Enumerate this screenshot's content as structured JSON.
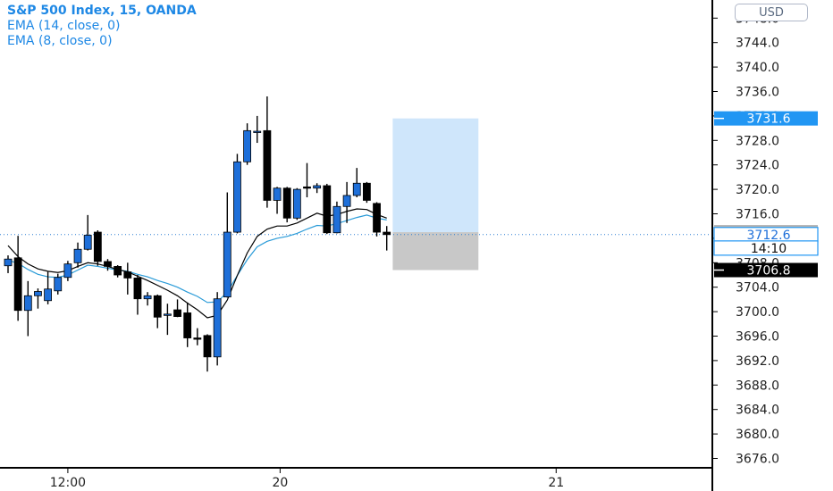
{
  "legend": {
    "title": "S&P 500 Index, 15, OANDA",
    "indicators": [
      "EMA (14, close, 0)",
      "EMA (8, close, 0)"
    ]
  },
  "currency": "USD",
  "price_axis": {
    "ticks": [
      "3676.0",
      "3680.0",
      "3684.0",
      "3688.0",
      "3692.0",
      "3696.0",
      "3700.0",
      "3704.0",
      "3708.0",
      "3712.0",
      "3716.0",
      "3720.0",
      "3724.0",
      "3728.0",
      "3732.0",
      "3736.0",
      "3740.0",
      "3744.0",
      "3748.0"
    ]
  },
  "time_axis": {
    "labels": [
      {
        "text": "12:00",
        "bar": 6
      },
      {
        "text": "20",
        "bar": 27.3
      },
      {
        "text": "21",
        "bar": 55
      }
    ]
  },
  "price_labels": [
    {
      "text": "3731.6",
      "price": 3731.6,
      "kind": "target"
    },
    {
      "text": "3713.0",
      "price": 3713.0,
      "kind": "entry"
    },
    {
      "text": "3712.6",
      "price": 3712.6,
      "kind": "last"
    },
    {
      "text": "14:10",
      "price": 3710.4,
      "kind": "countdown"
    },
    {
      "text": "3706.8",
      "price": 3706.8,
      "kind": "stop"
    }
  ],
  "colors": {
    "bull": "#1e6fd9",
    "bear": "#000000",
    "ema14": "#2a9bd8",
    "ema8": "#000000",
    "profit_zone": "#cfe6fb",
    "stop_zone": "#c8c8c8",
    "accent": "#1e88e5"
  },
  "chart_data": {
    "type": "candlestick",
    "symbol": "S&P 500 Index",
    "interval": "15",
    "source": "OANDA",
    "ylim": [
      3673,
      3750
    ],
    "candles": [
      {
        "o": 3707.5,
        "h": 3709.2,
        "l": 3706.3,
        "c": 3708.6
      },
      {
        "o": 3708.8,
        "h": 3712.4,
        "l": 3698.5,
        "c": 3700.2
      },
      {
        "o": 3700.2,
        "h": 3705.0,
        "l": 3696.0,
        "c": 3702.6
      },
      {
        "o": 3702.6,
        "h": 3703.8,
        "l": 3700.5,
        "c": 3703.3
      },
      {
        "o": 3701.8,
        "h": 3706.5,
        "l": 3701.2,
        "c": 3703.7
      },
      {
        "o": 3703.4,
        "h": 3706.2,
        "l": 3702.8,
        "c": 3705.6
      },
      {
        "o": 3705.6,
        "h": 3708.3,
        "l": 3705.0,
        "c": 3707.8
      },
      {
        "o": 3708.0,
        "h": 3711.3,
        "l": 3707.2,
        "c": 3710.2
      },
      {
        "o": 3710.2,
        "h": 3715.8,
        "l": 3710.0,
        "c": 3712.5
      },
      {
        "o": 3713.0,
        "h": 3713.3,
        "l": 3707.5,
        "c": 3708.2
      },
      {
        "o": 3708.2,
        "h": 3708.6,
        "l": 3706.7,
        "c": 3707.4
      },
      {
        "o": 3707.4,
        "h": 3707.6,
        "l": 3705.6,
        "c": 3706.0
      },
      {
        "o": 3706.5,
        "h": 3708.0,
        "l": 3702.8,
        "c": 3705.5
      },
      {
        "o": 3705.5,
        "h": 3706.0,
        "l": 3699.5,
        "c": 3702.1
      },
      {
        "o": 3702.1,
        "h": 3703.2,
        "l": 3701.0,
        "c": 3702.6
      },
      {
        "o": 3702.6,
        "h": 3702.8,
        "l": 3697.3,
        "c": 3699.1
      },
      {
        "o": 3699.4,
        "h": 3701.3,
        "l": 3696.2,
        "c": 3699.6
      },
      {
        "o": 3700.3,
        "h": 3702.0,
        "l": 3699.1,
        "c": 3699.2
      },
      {
        "o": 3699.8,
        "h": 3701.5,
        "l": 3694.2,
        "c": 3695.7
      },
      {
        "o": 3695.7,
        "h": 3697.3,
        "l": 3694.5,
        "c": 3695.5
      },
      {
        "o": 3696.1,
        "h": 3696.3,
        "l": 3690.2,
        "c": 3692.6
      },
      {
        "o": 3692.6,
        "h": 3703.2,
        "l": 3691.2,
        "c": 3702.1
      },
      {
        "o": 3702.4,
        "h": 3719.5,
        "l": 3702.3,
        "c": 3713.0
      },
      {
        "o": 3713.0,
        "h": 3725.8,
        "l": 3712.8,
        "c": 3724.5
      },
      {
        "o": 3724.5,
        "h": 3730.8,
        "l": 3724.0,
        "c": 3729.6
      },
      {
        "o": 3729.3,
        "h": 3732.0,
        "l": 3727.6,
        "c": 3729.5
      },
      {
        "o": 3729.6,
        "h": 3735.2,
        "l": 3717.0,
        "c": 3718.2
      },
      {
        "o": 3718.2,
        "h": 3720.4,
        "l": 3716.0,
        "c": 3720.2
      },
      {
        "o": 3720.2,
        "h": 3720.4,
        "l": 3714.6,
        "c": 3715.3
      },
      {
        "o": 3715.3,
        "h": 3720.2,
        "l": 3715.0,
        "c": 3720.0
      },
      {
        "o": 3720.4,
        "h": 3724.3,
        "l": 3718.7,
        "c": 3720.2
      },
      {
        "o": 3720.2,
        "h": 3721.0,
        "l": 3719.4,
        "c": 3720.6
      },
      {
        "o": 3720.6,
        "h": 3720.9,
        "l": 3712.7,
        "c": 3712.9
      },
      {
        "o": 3712.9,
        "h": 3718.0,
        "l": 3712.8,
        "c": 3717.2
      },
      {
        "o": 3717.2,
        "h": 3721.2,
        "l": 3714.5,
        "c": 3719.0
      },
      {
        "o": 3719.0,
        "h": 3723.5,
        "l": 3718.7,
        "c": 3721.0
      },
      {
        "o": 3721.0,
        "h": 3721.2,
        "l": 3717.8,
        "c": 3718.2
      },
      {
        "o": 3717.7,
        "h": 3717.9,
        "l": 3712.3,
        "c": 3713.0
      },
      {
        "o": 3713.0,
        "h": 3714.0,
        "l": 3710.0,
        "c": 3712.6
      }
    ],
    "ema14": [
      3708.4,
      3707.9,
      3706.9,
      3706.1,
      3705.7,
      3705.6,
      3706.0,
      3706.8,
      3707.6,
      3707.4,
      3707.1,
      3706.8,
      3706.6,
      3706.1,
      3705.7,
      3705.1,
      3704.6,
      3704.0,
      3703.2,
      3702.5,
      3701.5,
      3701.6,
      3703.2,
      3705.9,
      3708.5,
      3710.6,
      3711.5,
      3712.0,
      3712.3,
      3712.8,
      3713.5,
      3714.1,
      3714.0,
      3714.4,
      3714.9,
      3715.4,
      3715.8,
      3715.3,
      3715.0
    ],
    "ema8": [
      3710.8,
      3709.0,
      3707.8,
      3707.0,
      3706.6,
      3706.4,
      3706.7,
      3707.4,
      3708.0,
      3707.8,
      3707.4,
      3706.9,
      3706.5,
      3705.8,
      3705.1,
      3704.3,
      3703.5,
      3702.6,
      3701.4,
      3700.3,
      3699.0,
      3699.4,
      3701.9,
      3705.9,
      3709.6,
      3712.3,
      3713.5,
      3714.0,
      3714.0,
      3714.5,
      3715.3,
      3716.1,
      3715.6,
      3715.9,
      3716.4,
      3716.8,
      3716.7,
      3715.9,
      3715.3
    ],
    "position": {
      "type": "long",
      "entry": 3713.0,
      "target": 3731.6,
      "stop": 3706.8,
      "start_bar": 38.6,
      "end_bar": 47.2
    },
    "price_ticks": [
      3676,
      3680,
      3684,
      3688,
      3692,
      3696,
      3700,
      3704,
      3708,
      3712,
      3716,
      3720,
      3724,
      3728,
      3732,
      3736,
      3740,
      3744,
      3748
    ],
    "time_labels": [
      "12:00",
      "20",
      "21"
    ]
  }
}
